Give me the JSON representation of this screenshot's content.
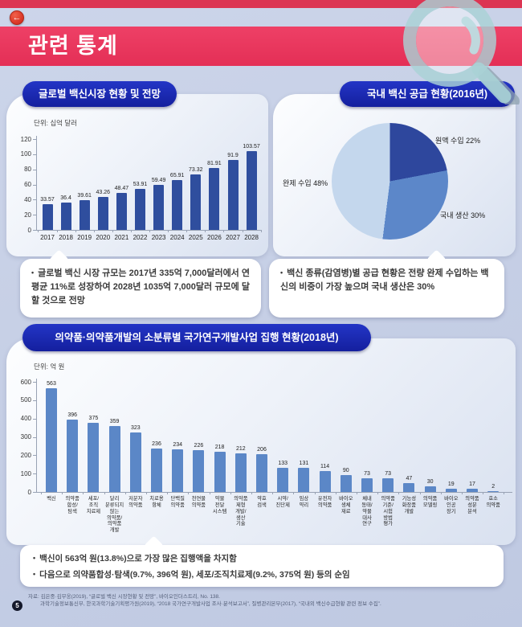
{
  "page": {
    "title": "관련 통계",
    "page_number": "5"
  },
  "icons": {
    "back": "←",
    "bullet": "•"
  },
  "colors": {
    "background": "#c7d0e6",
    "banner_red": "#e9395f",
    "top_strip_red": "#dc3553",
    "title_pill_blue": "#1c2bb4",
    "bar_chart1": "#2f4e9e",
    "bar_chart2": "#5b87c7",
    "pie_dark": "#2e479d",
    "pie_medium": "#5c87c9",
    "pie_light": "#c4d7ed",
    "magnifier_teal": "#a9d2d6"
  },
  "sections": {
    "s1": {
      "title": "글로벌 백신시장 현황 및 전망",
      "unit": "단위: 십억 달러",
      "note": "글로벌 백신 시장 규모는 2017년 335억 7,000달러에서 연평균 11%로 성장하여 2028년 1035억 7,000달러 규모에 달할 것으로 전망"
    },
    "s2": {
      "title": "국내 백신 공급 현황(2016년)",
      "note": "백신 종류(감염병)별 공급 현황은 전량 완제 수입하는 백신의 비중이 가장 높으며 국내 생산은 30%"
    },
    "s3": {
      "title": "의약품·의약품개발의 소분류별 국가연구개발사업 집행 현황(2018년)",
      "unit": "단위: 억 원",
      "notes": [
        "백신이 563억 원(13.8%)으로 가장 많은 집행액을 차지함",
        "다음으로 의약품합성·탐색(9.7%, 396억 원), 세포/조직치료제(9.2%, 375억 원) 등의 순임"
      ]
    }
  },
  "footer": {
    "line1": "자료: 김은중·김무웅(2019), “글로벌 백신 시장현황 및 전망”, 바이오인더스트리, No. 138.",
    "line2": "과학기술정보통신부, 한국과학기술기획평가원(2019), “2018 국가연구개발사업 조사·분석보고서”, 질병관리본부(2017), “국내외 백신수급현황 관련 정보 수집”."
  },
  "chart_data": [
    {
      "type": "bar",
      "title": "글로벌 백신시장 현황 및 전망",
      "unit": "십억 달러",
      "categories": [
        "2017",
        "2018",
        "2019",
        "2020",
        "2021",
        "2022",
        "2023",
        "2024",
        "2025",
        "2026",
        "2027",
        "2028"
      ],
      "values": [
        33.57,
        36.4,
        39.61,
        43.26,
        48.47,
        53.91,
        59.49,
        65.91,
        73.32,
        81.91,
        91.9,
        103.57
      ],
      "xlabel": "",
      "ylabel": "십억 달러",
      "ylim": [
        0,
        120
      ],
      "yticks": [
        0,
        20,
        40,
        60,
        80,
        100,
        120
      ],
      "grid": false,
      "bar_color": "#2f4e9e"
    },
    {
      "type": "pie",
      "title": "국내 백신 공급 현황(2016년)",
      "slices": [
        {
          "label": "원액 수입",
          "value": 22,
          "color": "#2e479d"
        },
        {
          "label": "국내 생산",
          "value": 30,
          "color": "#5c87c9"
        },
        {
          "label": "완제 수입",
          "value": 48,
          "color": "#c4d7ed"
        }
      ],
      "start_angle_deg": 0,
      "direction": "clockwise"
    },
    {
      "type": "bar",
      "title": "의약품·의약품개발의 소분류별 국가연구개발사업 집행 현황(2018년)",
      "unit": "억 원",
      "categories": [
        [
          "백신"
        ],
        [
          "의약품",
          "합성/",
          "탐색"
        ],
        [
          "세포/",
          "조직",
          "치료제"
        ],
        [
          "달리",
          "분류되지",
          "않는",
          "의약품/",
          "의약품",
          "개발"
        ],
        [
          "저분자",
          "의약품"
        ],
        [
          "치료용",
          "항체"
        ],
        [
          "단백질",
          "의약품"
        ],
        [
          "천연물",
          "의약품"
        ],
        [
          "약물",
          "전달",
          "시스템"
        ],
        [
          "의약품",
          "제형",
          "개발/",
          "생산",
          "기술"
        ],
        [
          "약효",
          "검색"
        ],
        [
          "시약/",
          "진단제"
        ],
        [
          "임상",
          "약리"
        ],
        [
          "유전자",
          "의약품"
        ],
        [
          "바이오",
          "생체",
          "재료"
        ],
        [
          "체내",
          "동태/",
          "약물",
          "대사",
          "연구"
        ],
        [
          "의약품",
          "기준/",
          "시험",
          "방법",
          "평가"
        ],
        [
          "기능성",
          "화장품",
          "개발"
        ],
        [
          "의약품",
          "모델링"
        ],
        [
          "바이오",
          "인공",
          "장기"
        ],
        [
          "의약품",
          "성분",
          "분석"
        ],
        [
          "효소",
          "의약품"
        ]
      ],
      "values": [
        563,
        396,
        375,
        359,
        323,
        236,
        234,
        226,
        218,
        212,
        206,
        133,
        131,
        114,
        90,
        73,
        73,
        47,
        30,
        19,
        17,
        2
      ],
      "xlabel": "",
      "ylabel": "억 원",
      "ylim": [
        0,
        600
      ],
      "yticks": [
        0,
        100,
        200,
        300,
        400,
        500,
        600
      ],
      "grid": false,
      "bar_color": "#5b87c7"
    }
  ]
}
